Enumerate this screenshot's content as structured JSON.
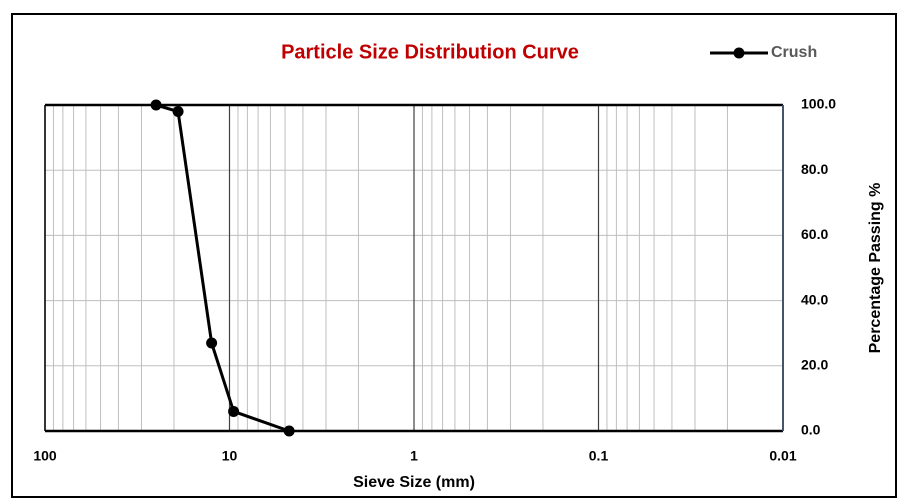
{
  "chart_data": {
    "type": "line",
    "title": "Particle Size Distribution Curve",
    "x_label": "Sieve Size (mm)",
    "y_label": "Percentage Passing %",
    "x": [
      25,
      19,
      12.5,
      9.5,
      4.75
    ],
    "series": [
      {
        "name": "Crush",
        "color": "#000000",
        "values": [
          100,
          98,
          27,
          6,
          0
        ]
      }
    ],
    "xlim": [
      100,
      0.01
    ],
    "xticks": [
      100,
      10,
      1,
      0.1,
      0.01
    ],
    "xscale": "log",
    "ylim": [
      0,
      100
    ],
    "yticks": [
      {
        "value": 0,
        "label": "0.0"
      },
      {
        "value": 20,
        "label": "20.0"
      },
      {
        "value": 40,
        "label": "40.0"
      },
      {
        "value": 60,
        "label": "60.0"
      },
      {
        "value": 80,
        "label": "80.0"
      },
      {
        "value": 100,
        "label": "100.0"
      }
    ],
    "grid": true,
    "legend": "top-right",
    "y_axis_side": "right"
  }
}
